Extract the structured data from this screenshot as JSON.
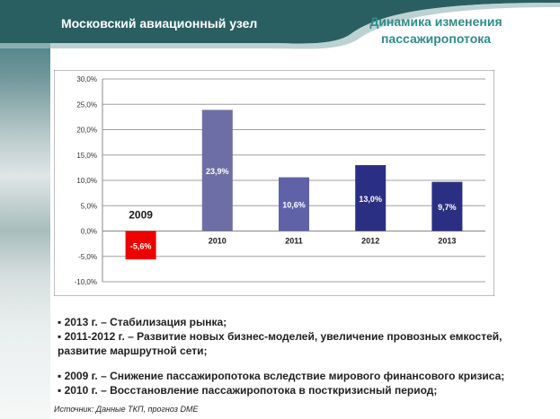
{
  "header": {
    "title": "Московский авиационный узел",
    "subtitle_line1": "Динамика изменения",
    "subtitle_line2": "пассажиропотока"
  },
  "colors": {
    "header_bar": "#2a5f62",
    "subtitle": "#2f8b88",
    "bar_negative": "#ee0000",
    "bars": [
      "#ee0000",
      "#6d6ea5",
      "#5f62a6",
      "#2b2f84",
      "#2b2f84"
    ]
  },
  "chart_data": {
    "type": "bar",
    "categories": [
      "2009",
      "2010",
      "2011",
      "2012",
      "2013"
    ],
    "values": [
      -5.6,
      23.9,
      10.6,
      13.0,
      9.7
    ],
    "data_labels": [
      "-5,6%",
      "23,9%",
      "10,6%",
      "13,0%",
      "9,7%"
    ],
    "ylim": [
      -10,
      30
    ],
    "y_ticks": [
      -10,
      -5,
      0,
      5,
      10,
      15,
      20,
      25,
      30
    ],
    "y_tick_labels": [
      "-10,0%",
      "-5,0%",
      "0,0%",
      "5,0%",
      "10,0%",
      "15,0%",
      "20,0%",
      "25,0%",
      "30,0%"
    ],
    "grid": true,
    "legend": "none"
  },
  "notes": [
    "▪ 2013 г. – Стабилизация  рынка;",
    "▪ 2011-2012 г. – Развитие новых бизнес-моделей, увеличение провозных емкостей, развитие маршрутной  сети;",
    "▪ 2009 г. – Снижение пассажиропотока вследствие мирового  финансового кризиса;",
    "▪ 2010 г. – Восстановление пассажиропотока в посткризисный  период;"
  ],
  "source": "Источник: Данные ТКП, прогноз DME"
}
